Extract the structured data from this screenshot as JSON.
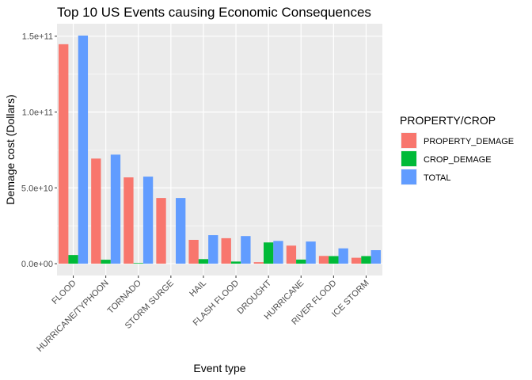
{
  "chart_data": {
    "type": "bar",
    "title": "Top 10 US Events causing Economic Consequences",
    "xlabel": "Event type",
    "ylabel": "Demage cost (Dollars)",
    "categories": [
      "FLOOD",
      "HURRICANE/TYPHOON",
      "TORNADO",
      "STORM SURGE",
      "HAIL",
      "FLASH FLOOD",
      "DROUGHT",
      "HURRICANE",
      "RIVER FLOOD",
      "ICE STORM"
    ],
    "series": [
      {
        "name": "PROPERTY_DEMAGE",
        "color": "#F8766D",
        "values": [
          144700000000.0,
          69300000000.0,
          56900000000.0,
          43300000000.0,
          15700000000.0,
          16800000000.0,
          1000000000.0,
          11900000000.0,
          5100000000.0,
          3900000000.0
        ]
      },
      {
        "name": "CROP_DEMAGE",
        "color": "#00BA38",
        "values": [
          5700000000.0,
          2600000000.0,
          400000000.0,
          0.0,
          3000000000.0,
          1400000000.0,
          14000000000.0,
          2700000000.0,
          5000000000.0,
          5000000000.0
        ]
      },
      {
        "name": "TOTAL",
        "color": "#619CFF",
        "values": [
          150400000000.0,
          71900000000.0,
          57400000000.0,
          43300000000.0,
          18800000000.0,
          18200000000.0,
          15000000000.0,
          14600000000.0,
          10100000000.0,
          8900000000.0
        ]
      }
    ],
    "ylim": [
      -7800000000.0,
      158200000000.0
    ],
    "yticks": [
      0,
      50000000000,
      100000000000,
      150000000000
    ],
    "ytick_labels": [
      "0.0e+00",
      "5.0e+10",
      "1.0e+11",
      "1.5e+11"
    ],
    "grid": true,
    "legend": {
      "title": "PROPERTY/CROP",
      "position": "right"
    },
    "background": "#EBEBEB"
  }
}
